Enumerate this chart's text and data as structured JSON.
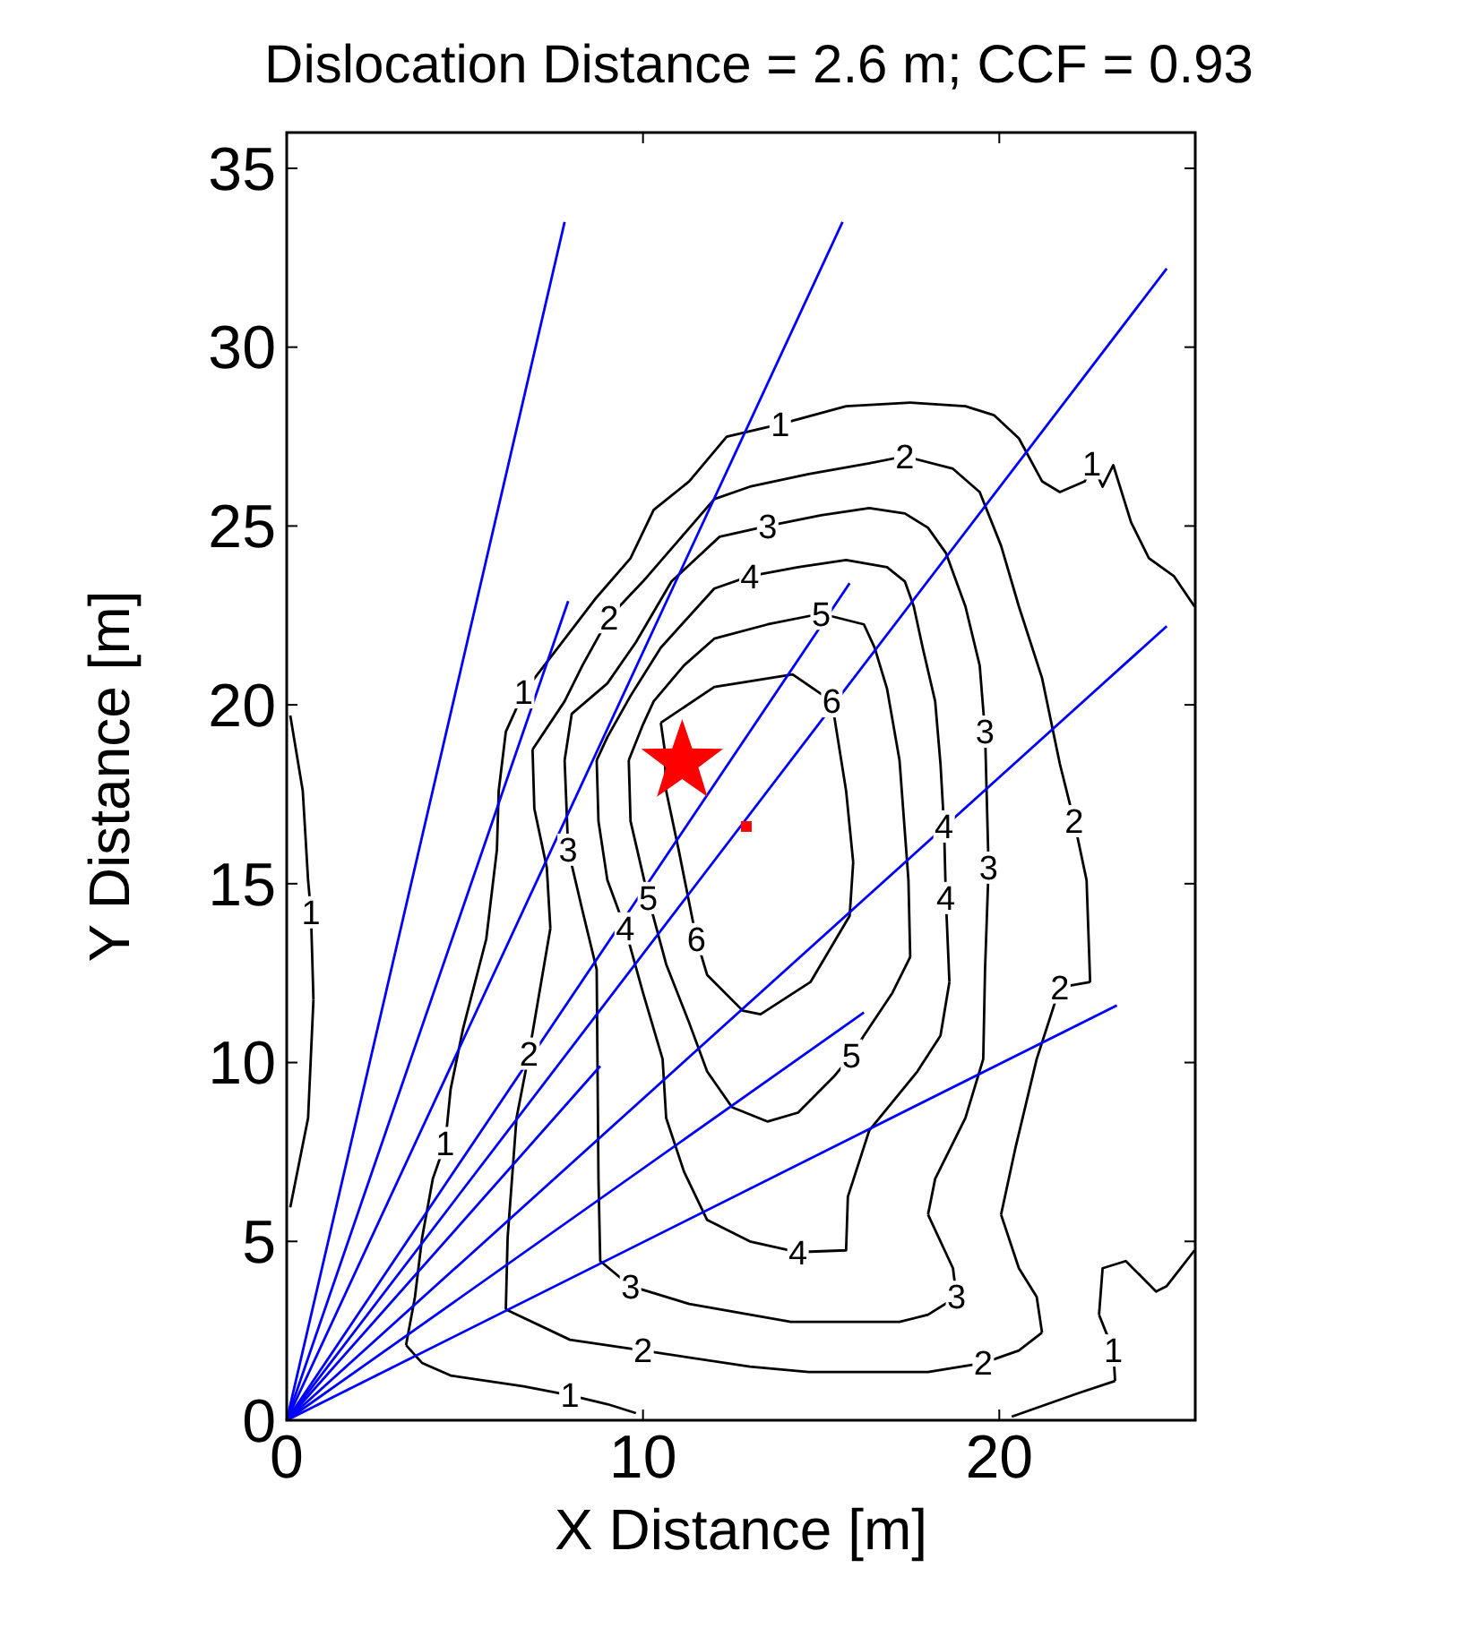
{
  "chart_data": {
    "type": "line",
    "title": "Dislocation Distance = 2.6 m; CCF = 0.93",
    "xlabel": "X Distance [m]",
    "ylabel": "Y Distance [m]",
    "xlim": [
      0,
      25.5
    ],
    "ylim": [
      0,
      36
    ],
    "xticks": [
      0,
      10,
      20
    ],
    "yticks": [
      0,
      5,
      10,
      15,
      20,
      25,
      30,
      35
    ],
    "line_style": "solid",
    "series": [
      {
        "color": "#000000",
        "x": [
          10.5,
          12.0,
          14.2,
          15.3,
          15.7,
          15.9
        ],
        "values": [
          19.5,
          20.5,
          20.85,
          20.1,
          17.6,
          15.6
        ]
      },
      {
        "color": "#000000",
        "x": [
          15.9,
          15.8,
          14.7,
          13.3,
          12.8,
          11.8,
          11.5,
          11.0,
          10.65,
          10.6,
          10.5
        ],
        "values": [
          15.6,
          14.1,
          12.25,
          11.35,
          11.45,
          12.45,
          13.45,
          15.95,
          17.6,
          18.8,
          19.5
        ]
      },
      {
        "color": "#000000",
        "x": [
          9.6,
          10.0,
          10.3,
          11.15,
          12.0,
          13.5,
          15.0,
          16.2,
          16.5,
          16.85,
          17.2,
          17.45,
          17.5
        ],
        "values": [
          18.45,
          19.45,
          20.1,
          21.1,
          21.85,
          22.25,
          22.55,
          22.25,
          21.6,
          20.45,
          18.45,
          15.1,
          12.95
        ]
      },
      {
        "color": "#000000",
        "x": [
          17.5,
          17.0,
          16.2,
          15.85,
          15.35,
          14.35,
          13.5,
          12.5,
          11.8,
          11.3,
          10.65,
          10.15,
          9.65,
          9.6
        ],
        "values": [
          12.95,
          11.95,
          10.75,
          10.2,
          9.6,
          8.6,
          8.35,
          8.75,
          9.75,
          11.1,
          12.75,
          14.6,
          16.75,
          18.45
        ]
      },
      {
        "color": "#000000",
        "x": [
          8.7,
          9.0,
          9.65,
          10.5,
          12.0,
          13.0,
          14.35,
          15.7,
          16.85,
          17.35,
          17.6,
          17.85,
          18.2,
          18.35,
          18.45,
          18.5,
          18.6
        ],
        "values": [
          18.45,
          19.1,
          20.25,
          21.6,
          23.25,
          23.6,
          23.85,
          24.05,
          23.85,
          23.45,
          22.75,
          21.6,
          20.1,
          18.35,
          16.6,
          14.6,
          12.25
        ]
      },
      {
        "color": "#000000",
        "x": [
          18.6,
          18.35,
          17.7,
          16.35,
          15.75,
          15.7,
          14.35,
          13.0,
          11.8,
          11.15,
          10.65,
          10.55,
          10.0,
          9.5,
          9.0,
          8.75,
          8.7
        ],
        "values": [
          12.25,
          10.75,
          9.75,
          8.1,
          6.25,
          4.75,
          4.7,
          5.0,
          5.6,
          6.95,
          8.45,
          10.1,
          11.95,
          13.75,
          15.1,
          16.75,
          18.45
        ]
      },
      {
        "color": "#000000",
        "x": [
          7.8,
          8.0,
          9.0,
          9.8,
          10.8,
          12.15,
          13.5,
          15.0,
          16.35,
          17.35,
          18.0,
          18.5,
          19.05,
          19.45,
          19.6,
          19.7
        ],
        "values": [
          18.45,
          19.75,
          20.6,
          21.75,
          23.45,
          24.7,
          25.0,
          25.3,
          25.5,
          25.35,
          24.95,
          24.25,
          22.75,
          21.1,
          19.25,
          15.45
        ]
      },
      {
        "color": "#000000",
        "x": [
          19.7,
          19.6,
          19.55,
          19.05,
          18.2,
          18.0
        ],
        "values": [
          15.45,
          12.6,
          10.1,
          8.45,
          6.75,
          5.75
        ]
      },
      {
        "color": "#000000",
        "x": [
          18.0,
          18.7,
          18.8
        ],
        "values": [
          5.75,
          4.25,
          3.45
        ]
      },
      {
        "color": "#000000",
        "x": [
          18.8,
          18.0,
          17.2,
          14.15,
          11.3,
          9.65,
          8.8,
          8.75,
          8.7,
          8.3,
          7.9,
          7.8
        ],
        "values": [
          3.45,
          2.95,
          2.75,
          2.75,
          3.25,
          3.75,
          4.45,
          6.75,
          12.6,
          14.25,
          15.95,
          18.45
        ]
      },
      {
        "color": "#000000",
        "x": [
          6.9,
          7.8,
          8.3,
          9.05,
          10.0,
          11.0,
          12.0,
          13.0,
          14.65,
          16.35,
          17.35,
          18.7,
          19.45,
          20.05,
          20.55,
          21.2,
          21.7,
          22.1,
          22.45,
          22.55
        ],
        "values": [
          18.75,
          20.1,
          21.1,
          22.45,
          23.45,
          24.6,
          25.75,
          26.1,
          26.45,
          26.75,
          26.95,
          26.6,
          25.95,
          24.45,
          22.75,
          20.75,
          18.35,
          16.75,
          15.1,
          12.25
        ]
      },
      {
        "color": "#000000",
        "x": [
          22.55,
          21.7,
          21.05,
          20.45,
          20.05
        ],
        "values": [
          12.25,
          12.1,
          10.1,
          7.6,
          5.75
        ]
      },
      {
        "color": "#000000",
        "x": [
          20.05,
          20.55,
          21.05,
          21.2
        ],
        "values": [
          5.75,
          4.25,
          3.45,
          2.45
        ]
      },
      {
        "color": "#000000",
        "x": [
          21.2,
          20.55,
          19.55,
          18.0,
          14.65,
          13.0,
          10.0,
          7.95,
          6.15
        ],
        "values": [
          2.45,
          1.95,
          1.6,
          1.35,
          1.35,
          1.5,
          1.95,
          2.25,
          3.1
        ]
      },
      {
        "color": "#000000",
        "x": [
          6.15,
          6.2,
          6.45,
          6.8,
          7.4
        ],
        "values": [
          3.1,
          5.1,
          8.45,
          10.25,
          13.75
        ]
      },
      {
        "color": "#000000",
        "x": [
          7.4,
          7.3,
          6.95,
          6.9
        ],
        "values": [
          13.75,
          15.45,
          17.1,
          18.75
        ]
      },
      {
        "color": "#000000",
        "x": [
          9.8,
          9.0,
          7.95,
          6.65,
          4.6,
          3.8,
          3.35
        ],
        "values": [
          0.2,
          0.45,
          0.7,
          0.95,
          1.25,
          1.6,
          2.1
        ]
      },
      {
        "color": "#000000",
        "x": [
          3.35,
          3.6,
          3.8,
          4.1,
          4.45,
          4.6,
          4.95,
          5.6,
          5.9,
          5.95,
          6.15,
          6.65,
          7.5,
          8.65,
          9.65,
          10.3,
          11.3,
          12.35,
          13.85,
          15.7,
          17.5,
          19.05,
          19.85,
          20.55,
          21.2,
          21.7,
          22.4,
          22.6,
          22.9,
          23.2,
          23.7,
          24.2,
          24.9,
          25.48
        ],
        "values": [
          2.1,
          3.45,
          5.1,
          6.75,
          7.75,
          9.25,
          10.95,
          13.45,
          15.95,
          17.6,
          19.25,
          20.35,
          21.45,
          22.95,
          24.1,
          25.45,
          26.25,
          27.5,
          27.85,
          28.35,
          28.45,
          28.35,
          28.1,
          27.45,
          26.25,
          25.95,
          26.25,
          26.75,
          26.1,
          26.7,
          25.1,
          24.1,
          23.6,
          22.75
        ]
      },
      {
        "color": "#000000",
        "x": [
          25.48,
          24.7,
          24.4,
          23.55,
          22.9,
          22.8
        ],
        "values": [
          4.75,
          3.75,
          3.6,
          4.45,
          4.25,
          2.95
        ]
      },
      {
        "color": "#000000",
        "x": [
          22.8,
          23.2,
          23.25
        ],
        "values": [
          2.95,
          1.95,
          1.1
        ]
      },
      {
        "color": "#000000",
        "x": [
          23.25,
          22.2,
          20.35
        ],
        "values": [
          1.1,
          0.75,
          0.1
        ]
      },
      {
        "color": "#000000",
        "x": [
          0.1,
          0.45,
          0.6,
          0.68,
          0.75
        ],
        "values": [
          19.7,
          17.6,
          15.1,
          14.2,
          11.75
        ]
      },
      {
        "color": "#000000",
        "x": [
          0.75,
          0.6,
          0.1
        ],
        "values": [
          11.75,
          8.45,
          5.95
        ]
      },
      {
        "color": "#0000ff",
        "x": [
          0,
          7.8
        ],
        "values": [
          0,
          33.5
        ]
      },
      {
        "color": "#0000ff",
        "x": [
          0,
          15.6
        ],
        "values": [
          0,
          33.5
        ]
      },
      {
        "color": "#0000ff",
        "x": [
          0,
          24.7
        ],
        "values": [
          0,
          32.2
        ]
      },
      {
        "color": "#0000ff",
        "x": [
          0,
          24.7
        ],
        "values": [
          0,
          22.2
        ]
      },
      {
        "color": "#0000ff",
        "x": [
          0,
          7.9
        ],
        "values": [
          0,
          22.9
        ]
      },
      {
        "color": "#0000ff",
        "x": [
          0,
          15.8
        ],
        "values": [
          0,
          23.4
        ]
      },
      {
        "color": "#0000ff",
        "x": [
          0,
          23.3
        ],
        "values": [
          0,
          11.6
        ]
      },
      {
        "color": "#0000ff",
        "x": [
          0,
          16.2
        ],
        "values": [
          0,
          11.4
        ]
      },
      {
        "color": "#0000ff",
        "x": [
          0,
          8.8
        ],
        "values": [
          0,
          9.9
        ]
      },
      {
        "type": "scatter",
        "marker": "star",
        "color": "#ff0000",
        "x": [
          11.1
        ],
        "values": [
          18.4
        ]
      },
      {
        "type": "scatter",
        "marker": "square",
        "color": "#ff0000",
        "x": [
          12.9
        ],
        "values": [
          16.6
        ]
      }
    ],
    "annotations": [
      {
        "text": "1",
        "x": 13.85,
        "y": 27.85
      },
      {
        "text": "2",
        "x": 17.35,
        "y": 26.95
      },
      {
        "text": "3",
        "x": 13.5,
        "y": 25.0
      },
      {
        "text": "4",
        "x": 13.0,
        "y": 23.6
      },
      {
        "text": "5",
        "x": 15.0,
        "y": 22.55
      },
      {
        "text": "6",
        "x": 15.3,
        "y": 20.1
      },
      {
        "text": "1",
        "x": 22.6,
        "y": 26.75
      },
      {
        "text": "2",
        "x": 9.05,
        "y": 22.45
      },
      {
        "text": "1",
        "x": 6.65,
        "y": 20.35
      },
      {
        "text": "3",
        "x": 19.6,
        "y": 19.25
      },
      {
        "text": "1",
        "x": 0.68,
        "y": 14.2
      },
      {
        "text": "3",
        "x": 7.9,
        "y": 15.95
      },
      {
        "text": "5",
        "x": 10.15,
        "y": 14.6
      },
      {
        "text": "4",
        "x": 9.5,
        "y": 13.75
      },
      {
        "text": "6",
        "x": 11.5,
        "y": 13.45
      },
      {
        "text": "4",
        "x": 18.45,
        "y": 16.6
      },
      {
        "text": "2",
        "x": 22.1,
        "y": 16.75
      },
      {
        "text": "3",
        "x": 19.7,
        "y": 15.45
      },
      {
        "text": "4",
        "x": 18.5,
        "y": 14.6
      },
      {
        "text": "2",
        "x": 21.7,
        "y": 12.1
      },
      {
        "text": "5",
        "x": 15.85,
        "y": 10.2
      },
      {
        "text": "2",
        "x": 6.8,
        "y": 10.25
      },
      {
        "text": "1",
        "x": 4.45,
        "y": 7.75
      },
      {
        "text": "4",
        "x": 14.35,
        "y": 4.7
      },
      {
        "text": "3",
        "x": 9.65,
        "y": 3.75
      },
      {
        "text": "3",
        "x": 18.8,
        "y": 3.45
      },
      {
        "text": "2",
        "x": 10.0,
        "y": 1.95
      },
      {
        "text": "2",
        "x": 19.55,
        "y": 1.6
      },
      {
        "text": "1",
        "x": 23.2,
        "y": 1.95
      },
      {
        "text": "1",
        "x": 7.95,
        "y": 0.7
      }
    ]
  }
}
